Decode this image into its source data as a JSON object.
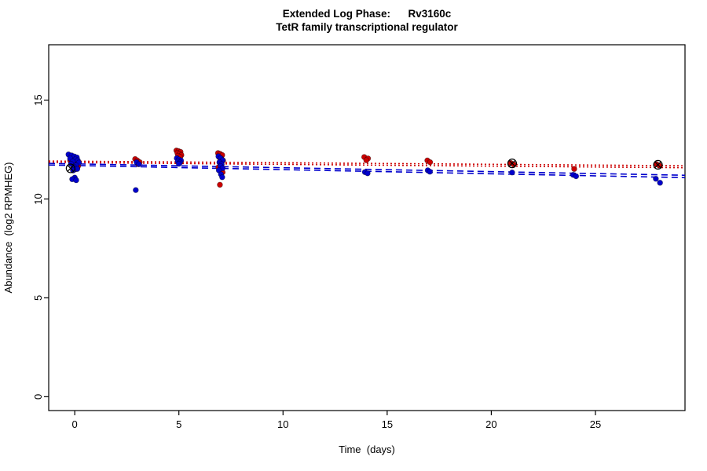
{
  "header": {
    "title": "Extended Log Phase:      Rv3160c",
    "subtitle": "TetR family transcriptional regulator"
  },
  "chart_data": {
    "type": "scatter",
    "title": "Extended Log Phase:      Rv3160c",
    "subtitle": "TetR family transcriptional regulator",
    "xlabel": "Time  (days)",
    "ylabel": "Abundance  (log2 RPMHEG)",
    "xlim": [
      -1.25,
      29.3
    ],
    "ylim": [
      -0.7,
      17.8
    ],
    "x_ticks": [
      0,
      5,
      10,
      15,
      20,
      25
    ],
    "y_ticks": [
      0,
      5,
      10,
      15
    ],
    "grid": false,
    "legend": "none",
    "colors": {
      "series_red": "#cc0000",
      "series_blue": "#0000cc",
      "marker_black": "#000000"
    },
    "series": [
      {
        "name": "red",
        "color": "#cc0000",
        "marker": "circle",
        "points": [
          [
            -0.22,
            11.95
          ],
          [
            -0.12,
            11.88
          ],
          [
            0,
            11.85
          ],
          [
            0.1,
            11.8
          ],
          [
            -0.16,
            11.76
          ],
          [
            0.05,
            11.72
          ],
          [
            0.16,
            11.66
          ],
          [
            -0.05,
            11.6
          ],
          [
            0.12,
            11.55
          ],
          [
            0.02,
            11.5
          ],
          [
            -0.08,
            11.45
          ],
          [
            2.9,
            12.02
          ],
          [
            3.0,
            11.95
          ],
          [
            3.12,
            11.86
          ],
          [
            3.05,
            11.76
          ],
          [
            4.88,
            12.45
          ],
          [
            4.98,
            12.42
          ],
          [
            5.08,
            12.38
          ],
          [
            4.93,
            12.32
          ],
          [
            5.03,
            12.28
          ],
          [
            5.12,
            12.22
          ],
          [
            4.96,
            12.18
          ],
          [
            5.06,
            12.12
          ],
          [
            6.88,
            12.32
          ],
          [
            6.98,
            12.28
          ],
          [
            7.08,
            12.22
          ],
          [
            6.93,
            12.12
          ],
          [
            7.03,
            12.05
          ],
          [
            7.12,
            11.95
          ],
          [
            6.95,
            11.85
          ],
          [
            7.05,
            11.75
          ],
          [
            6.9,
            11.6
          ],
          [
            7.0,
            11.5
          ],
          [
            7.1,
            11.35
          ],
          [
            6.97,
            10.72
          ],
          [
            13.9,
            12.12
          ],
          [
            14.08,
            12.05
          ],
          [
            14.0,
            11.96
          ],
          [
            16.93,
            11.95
          ],
          [
            17.06,
            11.86
          ],
          [
            20.93,
            11.82
          ],
          [
            21.06,
            11.76
          ],
          [
            23.98,
            11.52
          ],
          [
            27.93,
            11.76
          ],
          [
            28.06,
            11.7
          ]
        ]
      },
      {
        "name": "blue",
        "color": "#0000cc",
        "marker": "circle",
        "points": [
          [
            -0.3,
            12.25
          ],
          [
            -0.15,
            12.2
          ],
          [
            -0.02,
            12.15
          ],
          [
            0.1,
            12.1
          ],
          [
            -0.22,
            12.05
          ],
          [
            0.03,
            12.0
          ],
          [
            0.15,
            11.95
          ],
          [
            -0.1,
            11.9
          ],
          [
            0.2,
            11.84
          ],
          [
            -0.18,
            11.78
          ],
          [
            0.06,
            11.7
          ],
          [
            -0.04,
            11.62
          ],
          [
            0.12,
            11.52
          ],
          [
            -0.08,
            11.45
          ],
          [
            0.0,
            11.08
          ],
          [
            -0.12,
            11.0
          ],
          [
            0.07,
            10.95
          ],
          [
            2.97,
            11.86
          ],
          [
            3.08,
            11.76
          ],
          [
            2.93,
            10.45
          ],
          [
            4.9,
            12.06
          ],
          [
            5.0,
            12.0
          ],
          [
            5.1,
            11.95
          ],
          [
            4.95,
            11.9
          ],
          [
            5.05,
            11.84
          ],
          [
            5.0,
            11.78
          ],
          [
            6.9,
            12.16
          ],
          [
            7.0,
            12.06
          ],
          [
            7.1,
            11.96
          ],
          [
            6.95,
            11.86
          ],
          [
            7.05,
            11.76
          ],
          [
            7.0,
            11.66
          ],
          [
            7.1,
            11.56
          ],
          [
            6.92,
            11.45
          ],
          [
            7.02,
            11.25
          ],
          [
            7.08,
            11.1
          ],
          [
            13.93,
            11.36
          ],
          [
            14.06,
            11.3
          ],
          [
            16.95,
            11.45
          ],
          [
            17.05,
            11.38
          ],
          [
            21.0,
            11.34
          ],
          [
            23.93,
            11.22
          ],
          [
            24.07,
            11.15
          ],
          [
            27.9,
            11.02
          ],
          [
            28.1,
            10.82
          ]
        ]
      }
    ],
    "outlier_markers": {
      "name": "flagged",
      "symbol": "circle-x",
      "color": "#000000",
      "points": [
        [
          -0.2,
          11.55
        ],
        [
          21.0,
          11.8
        ],
        [
          28.0,
          11.73
        ]
      ]
    },
    "trend_lines": [
      {
        "color": "#cc0000",
        "dash": "dotted",
        "x": [
          -1.25,
          29.3
        ],
        "y": [
          11.92,
          11.68
        ]
      },
      {
        "color": "#cc0000",
        "dash": "dotted",
        "x": [
          -1.25,
          29.3
        ],
        "y": [
          11.85,
          11.58
        ]
      },
      {
        "color": "#0000cc",
        "dash": "dashed",
        "x": [
          -1.25,
          29.3
        ],
        "y": [
          11.8,
          11.2
        ]
      },
      {
        "color": "#0000cc",
        "dash": "dashed",
        "x": [
          -1.25,
          29.3
        ],
        "y": [
          11.72,
          11.08
        ]
      }
    ]
  }
}
